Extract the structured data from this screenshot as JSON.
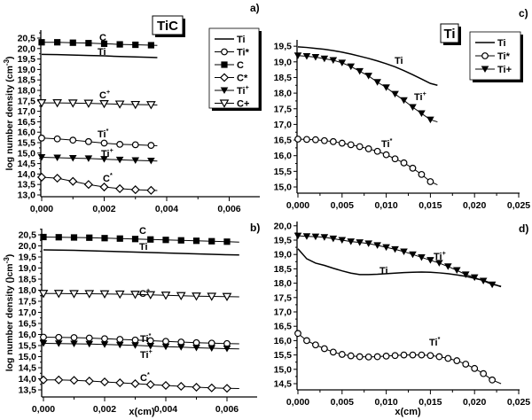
{
  "chart_data": [
    {
      "panel": "a)",
      "type": "line",
      "title": "TiC",
      "ylabel": "log number density  (cm-3)",
      "xlabel": "",
      "xlim": [
        0,
        0.007
      ],
      "ylim": [
        13.0,
        20.8
      ],
      "xticks": [
        "0,000",
        "0,002",
        "0,004",
        "0,006"
      ],
      "yticks": [
        "13,0",
        "13,5",
        "14,0",
        "14,5",
        "15,0",
        "15,5",
        "16,0",
        "16,5",
        "17,0",
        "17,5",
        "18,0",
        "18,5",
        "19,0",
        "19,5",
        "20,0",
        "20,5"
      ],
      "legend": {
        "position": "top-right",
        "entries": [
          {
            "label": "Ti",
            "marker": "none"
          },
          {
            "label": "Ti*",
            "marker": "circle-open"
          },
          {
            "label": "C",
            "marker": "square-filled"
          },
          {
            "label": "C*",
            "marker": "diamond-open"
          },
          {
            "label": "Ti+",
            "marker": "triangle-down-filled",
            "sup": true
          },
          {
            "label": "C+",
            "marker": "triangle-down-open"
          }
        ]
      },
      "x": [
        0,
        0.0005,
        0.001,
        0.0015,
        0.002,
        0.0025,
        0.003,
        0.0035
      ],
      "line_end_x": 0.0037,
      "series": [
        {
          "name": "C",
          "marker": "square-filled",
          "values": [
            20.3,
            20.3,
            20.28,
            20.26,
            20.23,
            20.2,
            20.18,
            20.16
          ],
          "end": 20.15
        },
        {
          "name": "Ti",
          "marker": "none",
          "values": [
            19.72,
            19.71,
            19.69,
            19.67,
            19.65,
            19.62,
            19.6,
            19.58
          ],
          "end": 19.57
        },
        {
          "name": "C+",
          "marker": "triangle-down-open",
          "values": [
            17.4,
            17.4,
            17.39,
            17.38,
            17.36,
            17.34,
            17.32,
            17.31
          ],
          "end": 17.3
        },
        {
          "name": "Ti*",
          "marker": "circle-open",
          "values": [
            15.72,
            15.68,
            15.62,
            15.55,
            15.48,
            15.42,
            15.4,
            15.37
          ],
          "end": 15.35
        },
        {
          "name": "Ti+",
          "marker": "triangle-down-filled",
          "values": [
            14.8,
            14.78,
            14.76,
            14.74,
            14.71,
            14.68,
            14.65,
            14.63
          ],
          "end": 14.62
        },
        {
          "name": "C*",
          "marker": "diamond-open",
          "values": [
            13.85,
            13.8,
            13.65,
            13.5,
            13.38,
            13.3,
            13.25,
            13.22
          ],
          "end": 13.21
        }
      ],
      "annotations": [
        {
          "base": "C",
          "sup": ""
        },
        {
          "base": "Ti",
          "sup": ""
        },
        {
          "base": "C",
          "sup": "+"
        },
        {
          "base": "Ti",
          "sup": "*"
        },
        {
          "base": "Ti",
          "sup": "+"
        },
        {
          "base": "C",
          "sup": "*"
        }
      ]
    },
    {
      "panel": "b)",
      "type": "line",
      "title": "",
      "ylabel": "log number density  ()cm-3)",
      "xlabel": "x(cm)",
      "xlim": [
        0,
        0.007
      ],
      "ylim": [
        13.3,
        20.7
      ],
      "xticks": [
        "0,000",
        "0,002",
        "0,004",
        "0,006"
      ],
      "yticks": [
        "13,5",
        "14,0",
        "14,5",
        "15,0",
        "15,5",
        "16,0",
        "16,5",
        "17,0",
        "17,5",
        "18,0",
        "18,5",
        "19,0",
        "19,5",
        "20,0",
        "20,5"
      ],
      "x": [
        0,
        0.0005,
        0.001,
        0.0015,
        0.002,
        0.0025,
        0.003,
        0.0035,
        0.004,
        0.0045,
        0.005,
        0.0055,
        0.006
      ],
      "line_end_x": 0.0064,
      "series": [
        {
          "name": "C",
          "marker": "square-filled",
          "values": [
            20.4,
            20.39,
            20.38,
            20.37,
            20.35,
            20.33,
            20.31,
            20.29,
            20.27,
            20.25,
            20.23,
            20.21,
            20.19
          ],
          "end": 20.17
        },
        {
          "name": "Ti",
          "marker": "none",
          "values": [
            19.82,
            19.81,
            19.8,
            19.78,
            19.76,
            19.74,
            19.72,
            19.7,
            19.68,
            19.66,
            19.64,
            19.62,
            19.6
          ],
          "end": 19.59
        },
        {
          "name": "C+",
          "marker": "triangle-down-open",
          "values": [
            17.85,
            17.85,
            17.84,
            17.84,
            17.83,
            17.82,
            17.81,
            17.79,
            17.77,
            17.75,
            17.73,
            17.72,
            17.71
          ],
          "end": 17.7
        },
        {
          "name": "Ti*",
          "marker": "circle-open",
          "values": [
            15.88,
            15.87,
            15.86,
            15.84,
            15.81,
            15.78,
            15.75,
            15.72,
            15.69,
            15.66,
            15.63,
            15.61,
            15.59
          ],
          "end": 15.58
        },
        {
          "name": "Ti+",
          "marker": "triangle-down-filled",
          "values": [
            15.6,
            15.59,
            15.58,
            15.57,
            15.55,
            15.53,
            15.51,
            15.48,
            15.45,
            15.43,
            15.4,
            15.38,
            15.36
          ],
          "end": 15.35
        },
        {
          "name": "C*",
          "marker": "diamond-open",
          "values": [
            13.95,
            13.95,
            13.93,
            13.9,
            13.86,
            13.82,
            13.78,
            13.74,
            13.7,
            13.66,
            13.62,
            13.59,
            13.57
          ],
          "end": 13.56
        }
      ],
      "annotations": [
        {
          "base": "C",
          "sup": ""
        },
        {
          "base": "Ti",
          "sup": ""
        },
        {
          "base": "C",
          "sup": "+"
        },
        {
          "base": "Ti",
          "sup": "*"
        },
        {
          "base": "Ti",
          "sup": "+"
        },
        {
          "base": "C",
          "sup": "*"
        }
      ]
    },
    {
      "panel": "c)",
      "type": "line",
      "title": "Ti",
      "ylabel": "",
      "xlabel": "",
      "xlim": [
        0,
        0.025
      ],
      "ylim": [
        14.8,
        19.7
      ],
      "xticks": [
        "0,000",
        "0,005",
        "0,010",
        "0,015",
        "0,020",
        "0,025"
      ],
      "yticks": [
        "15,0",
        "15,5",
        "16,0",
        "16,5",
        "17,0",
        "17,5",
        "18,0",
        "18,5",
        "19,0",
        "19,5"
      ],
      "legend": {
        "position": "top-right",
        "entries": [
          {
            "label": "Ti",
            "marker": "none"
          },
          {
            "label": "Ti*",
            "marker": "circle-open"
          },
          {
            "label": "Ti+",
            "marker": "triangle-down-filled"
          }
        ]
      },
      "x": [
        0,
        0.001,
        0.002,
        0.003,
        0.004,
        0.005,
        0.006,
        0.007,
        0.008,
        0.009,
        0.01,
        0.011,
        0.012,
        0.013,
        0.014,
        0.015
      ],
      "line_end_x": 0.0158,
      "series": [
        {
          "name": "Ti",
          "marker": "none",
          "values": [
            19.48,
            19.46,
            19.43,
            19.4,
            19.36,
            19.31,
            19.25,
            19.18,
            19.11,
            19.03,
            18.94,
            18.84,
            18.72,
            18.59,
            18.45,
            18.31
          ],
          "end": 18.25
        },
        {
          "name": "Ti+",
          "marker": "triangle-down-filled",
          "values": [
            19.2,
            19.18,
            19.15,
            19.1,
            19.05,
            18.97,
            18.85,
            18.7,
            18.55,
            18.35,
            18.18,
            17.97,
            17.77,
            17.55,
            17.35,
            17.15
          ],
          "end": 17.08
        },
        {
          "name": "Ti*",
          "marker": "circle-open",
          "values": [
            16.53,
            16.52,
            16.51,
            16.48,
            16.45,
            16.4,
            16.35,
            16.29,
            16.22,
            16.14,
            16.03,
            15.9,
            15.77,
            15.6,
            15.4,
            15.17
          ],
          "end": 15.07
        }
      ],
      "annotations": [
        {
          "base": "Ti",
          "sup": ""
        },
        {
          "base": "Ti",
          "sup": "+"
        },
        {
          "base": "Ti",
          "sup": "*"
        }
      ]
    },
    {
      "panel": "d)",
      "type": "line",
      "title": "",
      "ylabel": "",
      "xlabel": "x(cm)",
      "xlim": [
        0,
        0.025
      ],
      "ylim": [
        14.3,
        20.1
      ],
      "xticks": [
        "0,000",
        "0,005",
        "0,010",
        "0,015",
        "0,020",
        "0,025"
      ],
      "yticks": [
        "14,5",
        "15,0",
        "15,5",
        "16,0",
        "16,5",
        "17,0",
        "17,5",
        "18,0",
        "18,5",
        "19,0",
        "19,5",
        "20,0"
      ],
      "x": [
        0,
        0.001,
        0.002,
        0.003,
        0.004,
        0.005,
        0.006,
        0.007,
        0.008,
        0.009,
        0.01,
        0.011,
        0.012,
        0.013,
        0.014,
        0.015,
        0.016,
        0.017,
        0.018,
        0.019,
        0.02,
        0.021,
        0.022
      ],
      "line_end_x": 0.023,
      "series": [
        {
          "name": "Ti+",
          "marker": "triangle-down-filled",
          "values": [
            19.65,
            19.63,
            19.62,
            19.6,
            19.55,
            19.5,
            19.45,
            19.42,
            19.38,
            19.32,
            19.25,
            19.18,
            19.1,
            19.0,
            18.9,
            18.8,
            18.7,
            18.58,
            18.45,
            18.3,
            18.2,
            18.08,
            17.95
          ],
          "end": 17.9
        },
        {
          "name": "Ti",
          "marker": "none",
          "values": [
            19.2,
            18.85,
            18.7,
            18.62,
            18.52,
            18.43,
            18.35,
            18.3,
            18.3,
            18.31,
            18.33,
            18.35,
            18.37,
            18.38,
            18.39,
            18.38,
            18.36,
            18.33,
            18.29,
            18.24,
            18.17,
            18.1,
            17.98
          ],
          "end": 17.88
        },
        {
          "name": "Ti*",
          "marker": "circle-open",
          "values": [
            16.25,
            16.0,
            15.85,
            15.72,
            15.6,
            15.52,
            15.47,
            15.44,
            15.43,
            15.44,
            15.46,
            15.48,
            15.5,
            15.5,
            15.5,
            15.48,
            15.44,
            15.38,
            15.3,
            15.18,
            15.03,
            14.85,
            14.63
          ],
          "end": 14.5
        }
      ],
      "annotations": [
        {
          "base": "Ti",
          "sup": "+"
        },
        {
          "base": "Ti",
          "sup": ""
        },
        {
          "base": "Ti",
          "sup": "*"
        }
      ]
    }
  ]
}
